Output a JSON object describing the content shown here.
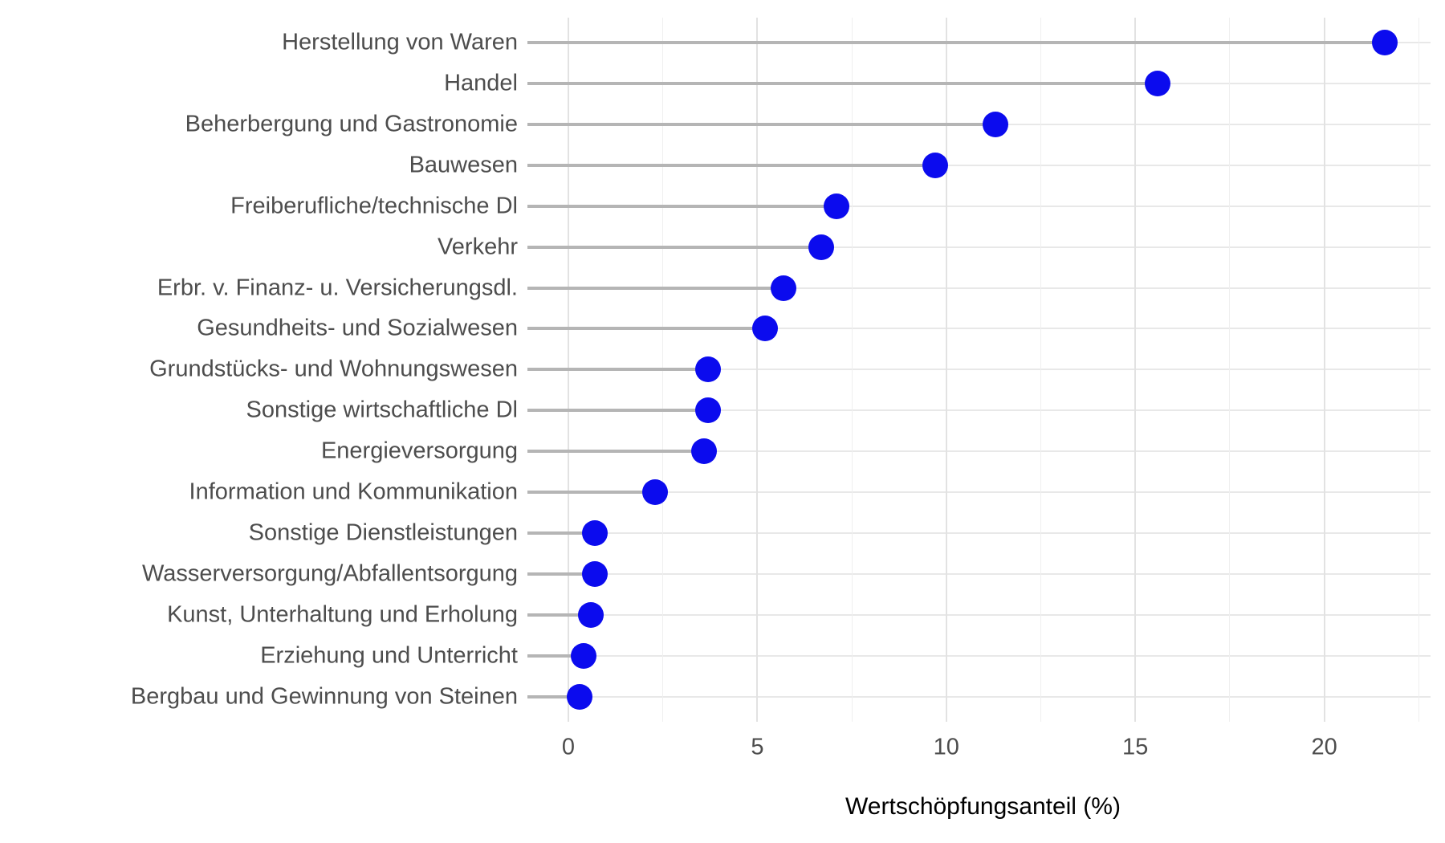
{
  "chart_data": {
    "type": "lollipop",
    "orientation": "horizontal",
    "title": "",
    "xlabel": "Wertschöpfungsanteil (%)",
    "ylabel": "",
    "categories": [
      "Herstellung von Waren",
      "Handel",
      "Beherbergung und Gastronomie",
      "Bauwesen",
      "Freiberufliche/technische Dl",
      "Verkehr",
      "Erbr. v. Finanz- u. Versicherungsdl.",
      "Gesundheits- und Sozialwesen",
      "Grundstücks- und Wohnungswesen",
      "Sonstige wirtschaftliche Dl",
      "Energieversorgung",
      "Information und Kommunikation",
      "Sonstige Dienstleistungen",
      "Wasserversorgung/Abfallentsorgung",
      "Kunst, Unterhaltung und Erholung",
      "Erziehung und Unterricht",
      "Bergbau und Gewinnung von Steinen"
    ],
    "values": [
      21.6,
      15.6,
      11.3,
      9.7,
      7.1,
      6.7,
      5.7,
      5.2,
      3.7,
      3.7,
      3.6,
      2.3,
      0.7,
      0.7,
      0.6,
      0.4,
      0.3
    ],
    "x_ticks": [
      0,
      5,
      10,
      15,
      20
    ],
    "x_tick_labels": [
      "0",
      "5",
      "10",
      "15",
      "20"
    ],
    "x_minor_ticks": [
      2.5,
      7.5,
      12.5,
      17.5,
      22.5
    ],
    "xlim": [
      -1.08,
      22.82
    ],
    "grid": "on",
    "legend": "none"
  },
  "colors": {
    "dot": "#0b0bee",
    "stem": "#b5b5b5",
    "grid_major": "#e2e2e2",
    "grid_minor": "#efefef",
    "grid_row": "#e8e8e8",
    "axis_text": "#4d4d4d",
    "axis_title": "#000000",
    "background": "#ffffff"
  }
}
